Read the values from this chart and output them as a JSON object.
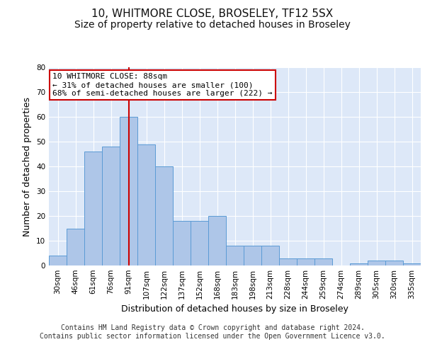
{
  "title1": "10, WHITMORE CLOSE, BROSELEY, TF12 5SX",
  "title2": "Size of property relative to detached houses in Broseley",
  "xlabel": "Distribution of detached houses by size in Broseley",
  "ylabel": "Number of detached properties",
  "categories": [
    "30sqm",
    "46sqm",
    "61sqm",
    "76sqm",
    "91sqm",
    "107sqm",
    "122sqm",
    "137sqm",
    "152sqm",
    "168sqm",
    "183sqm",
    "198sqm",
    "213sqm",
    "228sqm",
    "244sqm",
    "259sqm",
    "274sqm",
    "289sqm",
    "305sqm",
    "320sqm",
    "335sqm"
  ],
  "values": [
    4,
    15,
    46,
    48,
    60,
    49,
    40,
    18,
    18,
    20,
    8,
    8,
    8,
    3,
    3,
    3,
    0,
    1,
    2,
    2,
    1
  ],
  "bar_color": "#aec6e8",
  "bar_edge_color": "#5b9bd5",
  "vline_x_index": 4,
  "vline_color": "#cc0000",
  "annotation_line1": "10 WHITMORE CLOSE: 88sqm",
  "annotation_line2": "← 31% of detached houses are smaller (100)",
  "annotation_line3": "68% of semi-detached houses are larger (222) →",
  "annotation_box_color": "#ffffff",
  "annotation_box_edge": "#cc0000",
  "ylim": [
    0,
    80
  ],
  "yticks": [
    0,
    10,
    20,
    30,
    40,
    50,
    60,
    70,
    80
  ],
  "background_color": "#dde8f8",
  "grid_color": "#ffffff",
  "footer_line1": "Contains HM Land Registry data © Crown copyright and database right 2024.",
  "footer_line2": "Contains public sector information licensed under the Open Government Licence v3.0.",
  "title1_fontsize": 11,
  "title2_fontsize": 10,
  "xlabel_fontsize": 9,
  "ylabel_fontsize": 9,
  "tick_fontsize": 7.5,
  "annot_fontsize": 8,
  "footer_fontsize": 7
}
